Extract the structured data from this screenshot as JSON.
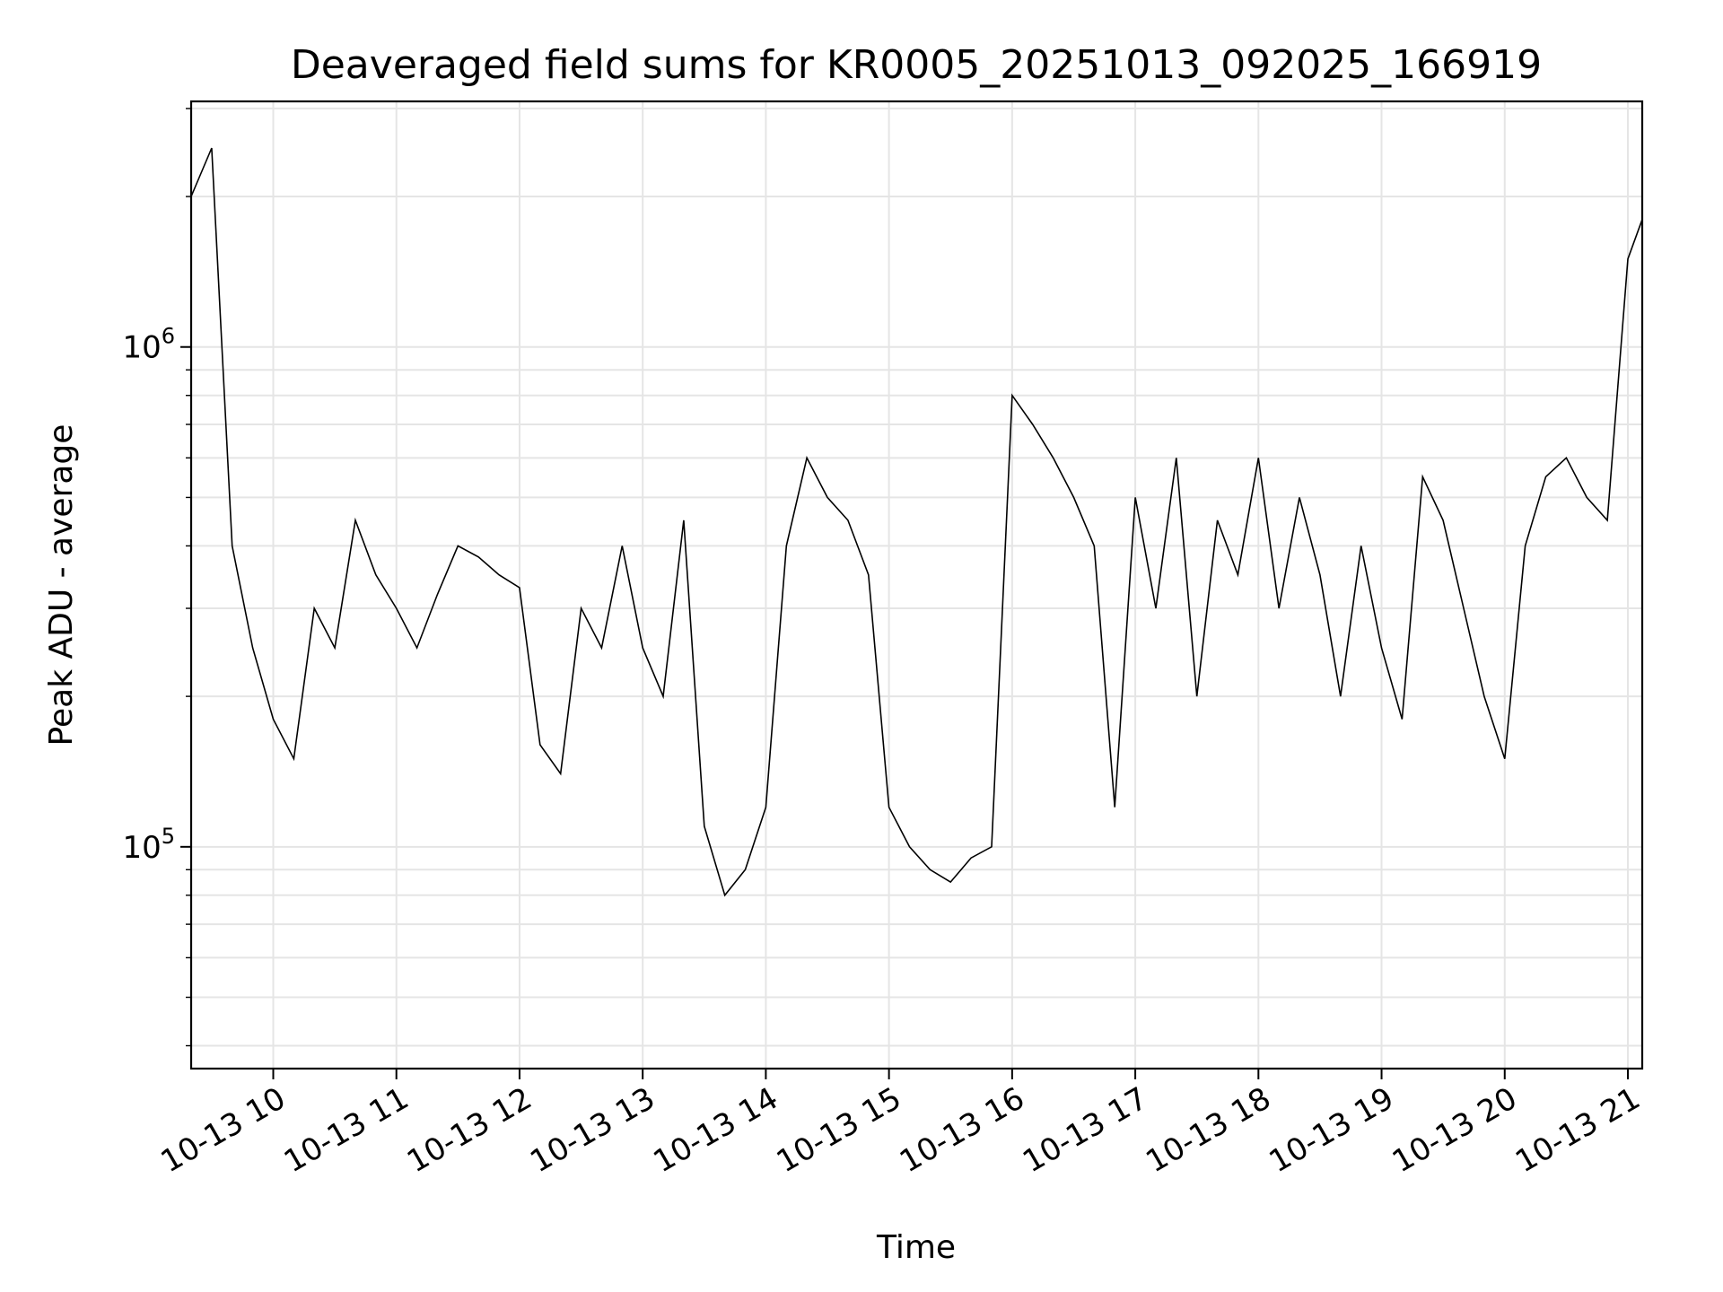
{
  "chart_data": {
    "type": "line",
    "title": "Deaveraged field sums for KR0005_20251013_092025_166919",
    "xlabel": "Time",
    "ylabel": "Peak ADU - average",
    "x_ticks": [
      "10-13 10",
      "10-13 11",
      "10-13 12",
      "10-13 13",
      "10-13 14",
      "10-13 15",
      "10-13 16",
      "10-13 17",
      "10-13 18",
      "10-13 19",
      "10-13 20",
      "10-13 21"
    ],
    "xlim": [
      "2025-10-13 09:20",
      "2025-10-13 21:07"
    ],
    "y_scale": "log",
    "ylim": [
      36000,
      3100000
    ],
    "y_ticks": [
      {
        "value": 100000,
        "base": "10",
        "exp": "5"
      },
      {
        "value": 1000000,
        "base": "10",
        "exp": "6"
      }
    ],
    "grid": true,
    "line_color": "#000000",
    "series": [
      {
        "x": [
          "2025-10-13 09:20",
          "2025-10-13 09:30",
          "2025-10-13 09:40",
          "2025-10-13 09:50",
          "2025-10-13 10:00",
          "2025-10-13 10:10",
          "2025-10-13 10:20",
          "2025-10-13 10:30",
          "2025-10-13 10:40",
          "2025-10-13 10:50",
          "2025-10-13 11:00",
          "2025-10-13 11:10",
          "2025-10-13 11:20",
          "2025-10-13 11:30",
          "2025-10-13 11:40",
          "2025-10-13 11:50",
          "2025-10-13 12:00",
          "2025-10-13 12:10",
          "2025-10-13 12:20",
          "2025-10-13 12:30",
          "2025-10-13 12:40",
          "2025-10-13 12:50",
          "2025-10-13 13:00",
          "2025-10-13 13:10",
          "2025-10-13 13:20",
          "2025-10-13 13:30",
          "2025-10-13 13:40",
          "2025-10-13 13:50",
          "2025-10-13 14:00",
          "2025-10-13 14:10",
          "2025-10-13 14:20",
          "2025-10-13 14:30",
          "2025-10-13 14:40",
          "2025-10-13 14:50",
          "2025-10-13 15:00",
          "2025-10-13 15:10",
          "2025-10-13 15:20",
          "2025-10-13 15:30",
          "2025-10-13 15:40",
          "2025-10-13 15:50",
          "2025-10-13 16:00",
          "2025-10-13 16:10",
          "2025-10-13 16:20",
          "2025-10-13 16:30",
          "2025-10-13 16:40",
          "2025-10-13 16:50",
          "2025-10-13 17:00",
          "2025-10-13 17:10",
          "2025-10-13 17:20",
          "2025-10-13 17:30",
          "2025-10-13 17:40",
          "2025-10-13 17:50",
          "2025-10-13 18:00",
          "2025-10-13 18:10",
          "2025-10-13 18:20",
          "2025-10-13 18:30",
          "2025-10-13 18:40",
          "2025-10-13 18:50",
          "2025-10-13 19:00",
          "2025-10-13 19:10",
          "2025-10-13 19:20",
          "2025-10-13 19:30",
          "2025-10-13 19:40",
          "2025-10-13 19:50",
          "2025-10-13 20:00",
          "2025-10-13 20:10",
          "2025-10-13 20:20",
          "2025-10-13 20:30",
          "2025-10-13 20:40",
          "2025-10-13 20:50",
          "2025-10-13 21:00",
          "2025-10-13 21:07"
        ],
        "y": [
          2000000,
          2500000,
          400000,
          250000,
          180000,
          150000,
          300000,
          250000,
          450000,
          350000,
          300000,
          250000,
          320000,
          400000,
          380000,
          350000,
          330000,
          160000,
          140000,
          300000,
          250000,
          400000,
          250000,
          200000,
          450000,
          110000,
          80000,
          90000,
          120000,
          400000,
          600000,
          500000,
          450000,
          350000,
          120000,
          100000,
          90000,
          85000,
          95000,
          100000,
          800000,
          700000,
          600000,
          500000,
          400000,
          120000,
          500000,
          300000,
          600000,
          200000,
          450000,
          350000,
          600000,
          300000,
          500000,
          350000,
          200000,
          400000,
          250000,
          180000,
          550000,
          450000,
          300000,
          200000,
          150000,
          400000,
          550000,
          600000,
          500000,
          450000,
          1500000,
          1800000
        ]
      }
    ]
  }
}
